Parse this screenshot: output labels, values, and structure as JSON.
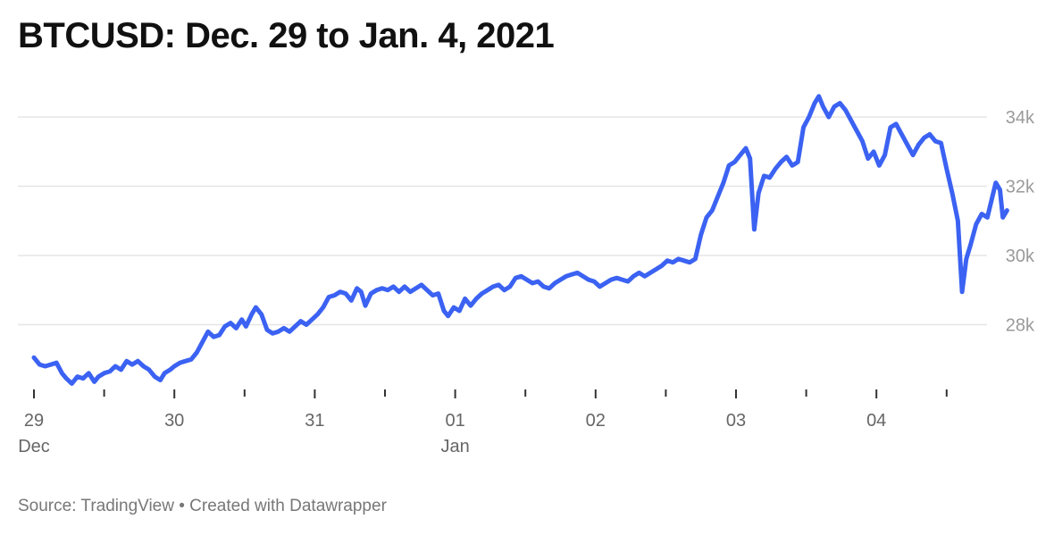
{
  "chart_data": {
    "type": "line",
    "title": "BTCUSD: Dec. 29 to Jan. 4, 2021",
    "source": "Source: TradingView • Created with Datawrapper",
    "xlabel": "",
    "ylabel": "",
    "x_range_days": [
      0,
      6.82
    ],
    "ylim": [
      26300,
      34900
    ],
    "grid": true,
    "y_ticks": [
      {
        "value": 28000,
        "label": "28k"
      },
      {
        "value": 30000,
        "label": "30k"
      },
      {
        "value": 32000,
        "label": "32k"
      },
      {
        "value": 34000,
        "label": "34k"
      }
    ],
    "x_major_ticks": [
      {
        "x": 0,
        "label": "29",
        "sublabel": "Dec"
      },
      {
        "x": 1,
        "label": "30",
        "sublabel": ""
      },
      {
        "x": 2,
        "label": "31",
        "sublabel": ""
      },
      {
        "x": 3,
        "label": "01",
        "sublabel": "Jan"
      },
      {
        "x": 4,
        "label": "02",
        "sublabel": ""
      },
      {
        "x": 5,
        "label": "03",
        "sublabel": ""
      },
      {
        "x": 6,
        "label": "04",
        "sublabel": ""
      }
    ],
    "x_minor_ticks": [
      0.5,
      1.5,
      2.5,
      3.5,
      4.5,
      5.5,
      6.5
    ],
    "series": [
      {
        "name": "BTCUSD",
        "color": "#3b62f2",
        "points": [
          [
            0.0,
            27050
          ],
          [
            0.04,
            26850
          ],
          [
            0.08,
            26800
          ],
          [
            0.12,
            26850
          ],
          [
            0.16,
            26900
          ],
          [
            0.2,
            26600
          ],
          [
            0.23,
            26450
          ],
          [
            0.27,
            26300
          ],
          [
            0.31,
            26500
          ],
          [
            0.35,
            26450
          ],
          [
            0.39,
            26600
          ],
          [
            0.43,
            26350
          ],
          [
            0.46,
            26500
          ],
          [
            0.5,
            26600
          ],
          [
            0.54,
            26650
          ],
          [
            0.58,
            26800
          ],
          [
            0.62,
            26700
          ],
          [
            0.66,
            26950
          ],
          [
            0.7,
            26850
          ],
          [
            0.74,
            26950
          ],
          [
            0.78,
            26800
          ],
          [
            0.82,
            26700
          ],
          [
            0.86,
            26500
          ],
          [
            0.9,
            26400
          ],
          [
            0.93,
            26600
          ],
          [
            0.97,
            26700
          ],
          [
            1.0,
            26800
          ],
          [
            1.04,
            26900
          ],
          [
            1.08,
            26950
          ],
          [
            1.12,
            27000
          ],
          [
            1.16,
            27200
          ],
          [
            1.2,
            27500
          ],
          [
            1.24,
            27800
          ],
          [
            1.28,
            27650
          ],
          [
            1.32,
            27700
          ],
          [
            1.36,
            27950
          ],
          [
            1.4,
            28050
          ],
          [
            1.44,
            27900
          ],
          [
            1.48,
            28150
          ],
          [
            1.51,
            27950
          ],
          [
            1.55,
            28300
          ],
          [
            1.58,
            28500
          ],
          [
            1.62,
            28300
          ],
          [
            1.66,
            27850
          ],
          [
            1.7,
            27750
          ],
          [
            1.74,
            27800
          ],
          [
            1.78,
            27900
          ],
          [
            1.82,
            27800
          ],
          [
            1.86,
            27950
          ],
          [
            1.9,
            28100
          ],
          [
            1.94,
            28000
          ],
          [
            1.98,
            28150
          ],
          [
            2.02,
            28300
          ],
          [
            2.06,
            28500
          ],
          [
            2.1,
            28800
          ],
          [
            2.14,
            28850
          ],
          [
            2.18,
            28950
          ],
          [
            2.22,
            28900
          ],
          [
            2.26,
            28700
          ],
          [
            2.3,
            29050
          ],
          [
            2.33,
            28950
          ],
          [
            2.36,
            28550
          ],
          [
            2.4,
            28900
          ],
          [
            2.44,
            29000
          ],
          [
            2.48,
            29050
          ],
          [
            2.52,
            29000
          ],
          [
            2.56,
            29100
          ],
          [
            2.6,
            28950
          ],
          [
            2.64,
            29100
          ],
          [
            2.68,
            28950
          ],
          [
            2.72,
            29050
          ],
          [
            2.76,
            29150
          ],
          [
            2.8,
            29000
          ],
          [
            2.84,
            28850
          ],
          [
            2.88,
            28900
          ],
          [
            2.92,
            28400
          ],
          [
            2.95,
            28250
          ],
          [
            2.99,
            28500
          ],
          [
            3.03,
            28400
          ],
          [
            3.07,
            28750
          ],
          [
            3.11,
            28550
          ],
          [
            3.15,
            28750
          ],
          [
            3.19,
            28900
          ],
          [
            3.23,
            29000
          ],
          [
            3.27,
            29100
          ],
          [
            3.31,
            29150
          ],
          [
            3.35,
            29000
          ],
          [
            3.39,
            29100
          ],
          [
            3.43,
            29350
          ],
          [
            3.47,
            29400
          ],
          [
            3.51,
            29300
          ],
          [
            3.55,
            29200
          ],
          [
            3.59,
            29250
          ],
          [
            3.63,
            29100
          ],
          [
            3.67,
            29050
          ],
          [
            3.71,
            29200
          ],
          [
            3.75,
            29300
          ],
          [
            3.79,
            29400
          ],
          [
            3.83,
            29450
          ],
          [
            3.87,
            29500
          ],
          [
            3.91,
            29400
          ],
          [
            3.95,
            29300
          ],
          [
            3.99,
            29250
          ],
          [
            4.03,
            29100
          ],
          [
            4.07,
            29200
          ],
          [
            4.11,
            29300
          ],
          [
            4.15,
            29350
          ],
          [
            4.19,
            29300
          ],
          [
            4.23,
            29250
          ],
          [
            4.27,
            29400
          ],
          [
            4.31,
            29500
          ],
          [
            4.35,
            29400
          ],
          [
            4.39,
            29500
          ],
          [
            4.43,
            29600
          ],
          [
            4.47,
            29700
          ],
          [
            4.51,
            29850
          ],
          [
            4.55,
            29800
          ],
          [
            4.59,
            29900
          ],
          [
            4.63,
            29850
          ],
          [
            4.67,
            29800
          ],
          [
            4.71,
            29900
          ],
          [
            4.75,
            30600
          ],
          [
            4.79,
            31100
          ],
          [
            4.83,
            31300
          ],
          [
            4.87,
            31700
          ],
          [
            4.91,
            32100
          ],
          [
            4.95,
            32600
          ],
          [
            4.99,
            32700
          ],
          [
            5.03,
            32900
          ],
          [
            5.07,
            33100
          ],
          [
            5.1,
            32800
          ],
          [
            5.13,
            30750
          ],
          [
            5.16,
            31800
          ],
          [
            5.2,
            32300
          ],
          [
            5.24,
            32250
          ],
          [
            5.28,
            32500
          ],
          [
            5.32,
            32700
          ],
          [
            5.36,
            32850
          ],
          [
            5.4,
            32600
          ],
          [
            5.44,
            32700
          ],
          [
            5.48,
            33700
          ],
          [
            5.52,
            34000
          ],
          [
            5.56,
            34400
          ],
          [
            5.59,
            34600
          ],
          [
            5.62,
            34300
          ],
          [
            5.66,
            34000
          ],
          [
            5.7,
            34300
          ],
          [
            5.74,
            34400
          ],
          [
            5.78,
            34200
          ],
          [
            5.82,
            33900
          ],
          [
            5.86,
            33600
          ],
          [
            5.9,
            33300
          ],
          [
            5.94,
            32800
          ],
          [
            5.98,
            33000
          ],
          [
            6.02,
            32600
          ],
          [
            6.06,
            32900
          ],
          [
            6.1,
            33700
          ],
          [
            6.14,
            33800
          ],
          [
            6.18,
            33500
          ],
          [
            6.22,
            33200
          ],
          [
            6.26,
            32900
          ],
          [
            6.3,
            33200
          ],
          [
            6.34,
            33400
          ],
          [
            6.38,
            33500
          ],
          [
            6.42,
            33300
          ],
          [
            6.46,
            33250
          ],
          [
            6.5,
            32500
          ],
          [
            6.54,
            31800
          ],
          [
            6.58,
            31000
          ],
          [
            6.61,
            28950
          ],
          [
            6.64,
            29900
          ],
          [
            6.67,
            30300
          ],
          [
            6.71,
            30900
          ],
          [
            6.75,
            31200
          ],
          [
            6.79,
            31100
          ],
          [
            6.82,
            31600
          ],
          [
            6.85,
            32100
          ],
          [
            6.88,
            31900
          ],
          [
            6.9,
            31100
          ],
          [
            6.93,
            31300
          ]
        ]
      }
    ]
  }
}
